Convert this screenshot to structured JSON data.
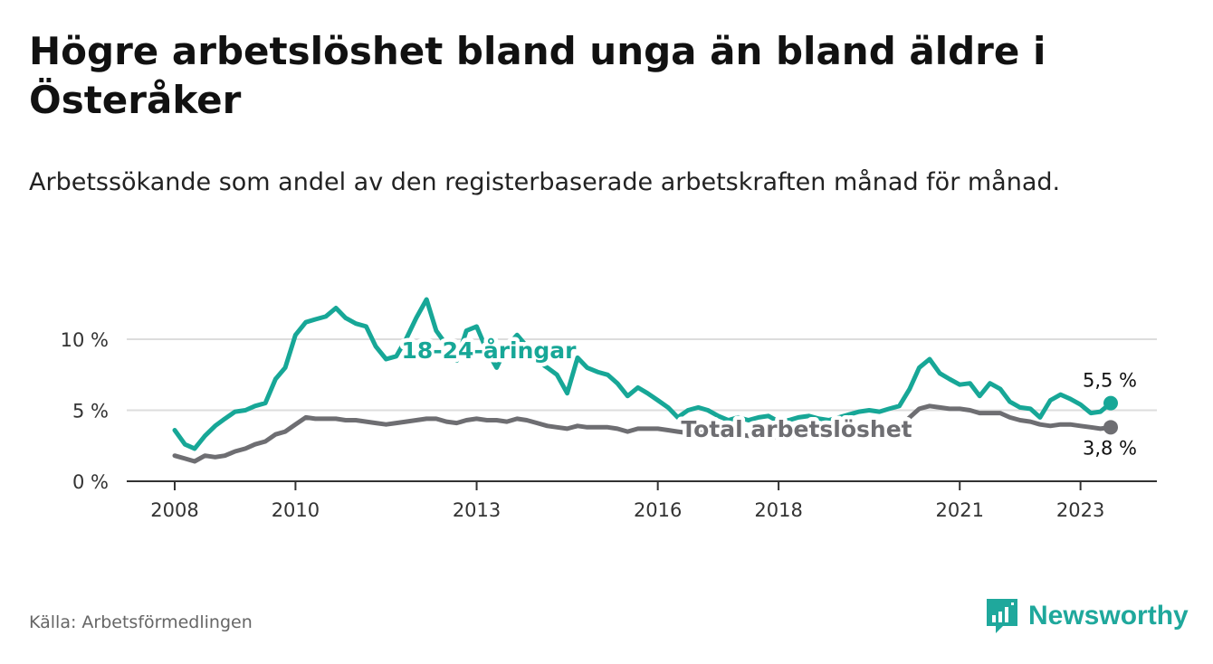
{
  "title": "Högre arbetslöshet bland unga än bland äldre i Österåker",
  "subtitle": "Arbetssökande som andel av den registerbaserade arbetskraften månad för månad.",
  "source": "Källa: Arbetsförmedlingen",
  "brand": "Newsworthy",
  "colors": {
    "youth": "#17a797",
    "total": "#6e6e72",
    "grid": "#dddddd",
    "axis": "#333333"
  },
  "chart_data": {
    "type": "line",
    "title": "Högre arbetslöshet bland unga än bland äldre i Österåker",
    "xlabel": "",
    "ylabel": "",
    "xlim": [
      2008.0,
      2023.5
    ],
    "ylim": [
      0,
      10
    ],
    "y_ticks": [
      0,
      5,
      10
    ],
    "y_tick_labels": [
      "0 %",
      "5 %",
      "10 %"
    ],
    "x_ticks": [
      2008,
      2010,
      2013,
      2016,
      2018,
      2021,
      2023
    ],
    "x_tick_labels": [
      "2008",
      "2010",
      "2013",
      "2016",
      "2018",
      "2021",
      "2023"
    ],
    "grid": true,
    "series": [
      {
        "name": "18-24-åringar",
        "end_label": "5,5 %",
        "points": [
          [
            2008.0,
            3.6
          ],
          [
            2008.17,
            2.6
          ],
          [
            2008.33,
            2.3
          ],
          [
            2008.5,
            3.2
          ],
          [
            2008.67,
            3.9
          ],
          [
            2008.83,
            4.4
          ],
          [
            2009.0,
            4.9
          ],
          [
            2009.17,
            5.0
          ],
          [
            2009.33,
            5.3
          ],
          [
            2009.5,
            5.5
          ],
          [
            2009.67,
            7.2
          ],
          [
            2009.83,
            8.0
          ],
          [
            2010.0,
            10.3
          ],
          [
            2010.17,
            11.2
          ],
          [
            2010.33,
            11.4
          ],
          [
            2010.5,
            11.6
          ],
          [
            2010.67,
            12.2
          ],
          [
            2010.83,
            11.5
          ],
          [
            2011.0,
            11.1
          ],
          [
            2011.17,
            10.9
          ],
          [
            2011.33,
            9.5
          ],
          [
            2011.5,
            8.6
          ],
          [
            2011.67,
            8.8
          ],
          [
            2011.83,
            10.0
          ],
          [
            2012.0,
            11.5
          ],
          [
            2012.17,
            12.8
          ],
          [
            2012.33,
            10.6
          ],
          [
            2012.5,
            9.6
          ],
          [
            2012.67,
            8.5
          ],
          [
            2012.83,
            10.6
          ],
          [
            2013.0,
            10.9
          ],
          [
            2013.17,
            9.2
          ],
          [
            2013.33,
            8.0
          ],
          [
            2013.5,
            9.5
          ],
          [
            2013.67,
            10.3
          ],
          [
            2013.83,
            9.5
          ],
          [
            2014.0,
            8.5
          ],
          [
            2014.17,
            8.0
          ],
          [
            2014.33,
            7.5
          ],
          [
            2014.5,
            6.2
          ],
          [
            2014.67,
            8.7
          ],
          [
            2014.83,
            8.0
          ],
          [
            2015.0,
            7.7
          ],
          [
            2015.17,
            7.5
          ],
          [
            2015.33,
            6.9
          ],
          [
            2015.5,
            6.0
          ],
          [
            2015.67,
            6.6
          ],
          [
            2015.83,
            6.2
          ],
          [
            2016.0,
            5.7
          ],
          [
            2016.17,
            5.2
          ],
          [
            2016.33,
            4.5
          ],
          [
            2016.5,
            5.0
          ],
          [
            2016.67,
            5.2
          ],
          [
            2016.83,
            5.0
          ],
          [
            2017.0,
            4.6
          ],
          [
            2017.17,
            4.3
          ],
          [
            2017.33,
            4.5
          ],
          [
            2017.5,
            4.3
          ],
          [
            2017.67,
            4.5
          ],
          [
            2017.83,
            4.6
          ],
          [
            2018.0,
            4.2
          ],
          [
            2018.17,
            4.3
          ],
          [
            2018.33,
            4.5
          ],
          [
            2018.5,
            4.6
          ],
          [
            2018.67,
            4.4
          ],
          [
            2018.83,
            4.3
          ],
          [
            2019.0,
            4.5
          ],
          [
            2019.17,
            4.7
          ],
          [
            2019.33,
            4.9
          ],
          [
            2019.5,
            5.0
          ],
          [
            2019.67,
            4.9
          ],
          [
            2019.83,
            5.1
          ],
          [
            2020.0,
            5.3
          ],
          [
            2020.17,
            6.5
          ],
          [
            2020.33,
            8.0
          ],
          [
            2020.5,
            8.6
          ],
          [
            2020.67,
            7.6
          ],
          [
            2020.83,
            7.2
          ],
          [
            2021.0,
            6.8
          ],
          [
            2021.17,
            6.9
          ],
          [
            2021.33,
            6.0
          ],
          [
            2021.5,
            6.9
          ],
          [
            2021.67,
            6.5
          ],
          [
            2021.83,
            5.6
          ],
          [
            2022.0,
            5.2
          ],
          [
            2022.17,
            5.1
          ],
          [
            2022.33,
            4.5
          ],
          [
            2022.5,
            5.7
          ],
          [
            2022.67,
            6.1
          ],
          [
            2022.83,
            5.8
          ],
          [
            2023.0,
            5.4
          ],
          [
            2023.17,
            4.8
          ],
          [
            2023.33,
            4.9
          ],
          [
            2023.5,
            5.5
          ]
        ]
      },
      {
        "name": "Total arbetslöshet",
        "end_label": "3,8 %",
        "points": [
          [
            2008.0,
            1.8
          ],
          [
            2008.17,
            1.6
          ],
          [
            2008.33,
            1.4
          ],
          [
            2008.5,
            1.8
          ],
          [
            2008.67,
            1.7
          ],
          [
            2008.83,
            1.8
          ],
          [
            2009.0,
            2.1
          ],
          [
            2009.17,
            2.3
          ],
          [
            2009.33,
            2.6
          ],
          [
            2009.5,
            2.8
          ],
          [
            2009.67,
            3.3
          ],
          [
            2009.83,
            3.5
          ],
          [
            2010.0,
            4.0
          ],
          [
            2010.17,
            4.5
          ],
          [
            2010.33,
            4.4
          ],
          [
            2010.5,
            4.4
          ],
          [
            2010.67,
            4.4
          ],
          [
            2010.83,
            4.3
          ],
          [
            2011.0,
            4.3
          ],
          [
            2011.17,
            4.2
          ],
          [
            2011.33,
            4.1
          ],
          [
            2011.5,
            4.0
          ],
          [
            2011.67,
            4.1
          ],
          [
            2011.83,
            4.2
          ],
          [
            2012.0,
            4.3
          ],
          [
            2012.17,
            4.4
          ],
          [
            2012.33,
            4.4
          ],
          [
            2012.5,
            4.2
          ],
          [
            2012.67,
            4.1
          ],
          [
            2012.83,
            4.3
          ],
          [
            2013.0,
            4.4
          ],
          [
            2013.17,
            4.3
          ],
          [
            2013.33,
            4.3
          ],
          [
            2013.5,
            4.2
          ],
          [
            2013.67,
            4.4
          ],
          [
            2013.83,
            4.3
          ],
          [
            2014.0,
            4.1
          ],
          [
            2014.17,
            3.9
          ],
          [
            2014.33,
            3.8
          ],
          [
            2014.5,
            3.7
          ],
          [
            2014.67,
            3.9
          ],
          [
            2014.83,
            3.8
          ],
          [
            2015.0,
            3.8
          ],
          [
            2015.17,
            3.8
          ],
          [
            2015.33,
            3.7
          ],
          [
            2015.5,
            3.5
          ],
          [
            2015.67,
            3.7
          ],
          [
            2015.83,
            3.7
          ],
          [
            2016.0,
            3.7
          ],
          [
            2016.17,
            3.6
          ],
          [
            2016.33,
            3.5
          ],
          [
            2016.5,
            3.4
          ],
          [
            2016.67,
            3.4
          ],
          [
            2016.83,
            3.4
          ],
          [
            2017.0,
            3.3
          ],
          [
            2017.17,
            3.2
          ],
          [
            2017.33,
            3.3
          ],
          [
            2017.5,
            3.2
          ],
          [
            2017.67,
            3.2
          ],
          [
            2017.83,
            3.2
          ],
          [
            2018.0,
            3.1
          ],
          [
            2018.17,
            3.1
          ],
          [
            2018.33,
            3.2
          ],
          [
            2018.5,
            3.2
          ],
          [
            2018.67,
            3.1
          ],
          [
            2018.83,
            3.1
          ],
          [
            2019.0,
            3.2
          ],
          [
            2019.17,
            3.3
          ],
          [
            2019.33,
            3.4
          ],
          [
            2019.5,
            3.5
          ],
          [
            2019.67,
            3.5
          ],
          [
            2019.83,
            3.6
          ],
          [
            2020.0,
            3.8
          ],
          [
            2020.17,
            4.5
          ],
          [
            2020.33,
            5.1
          ],
          [
            2020.5,
            5.3
          ],
          [
            2020.67,
            5.2
          ],
          [
            2020.83,
            5.1
          ],
          [
            2021.0,
            5.1
          ],
          [
            2021.17,
            5.0
          ],
          [
            2021.33,
            4.8
          ],
          [
            2021.5,
            4.8
          ],
          [
            2021.67,
            4.8
          ],
          [
            2021.83,
            4.5
          ],
          [
            2022.0,
            4.3
          ],
          [
            2022.17,
            4.2
          ],
          [
            2022.33,
            4.0
          ],
          [
            2022.5,
            3.9
          ],
          [
            2022.67,
            4.0
          ],
          [
            2022.83,
            4.0
          ],
          [
            2023.0,
            3.9
          ],
          [
            2023.17,
            3.8
          ],
          [
            2023.33,
            3.7
          ],
          [
            2023.5,
            3.8
          ]
        ]
      }
    ]
  }
}
